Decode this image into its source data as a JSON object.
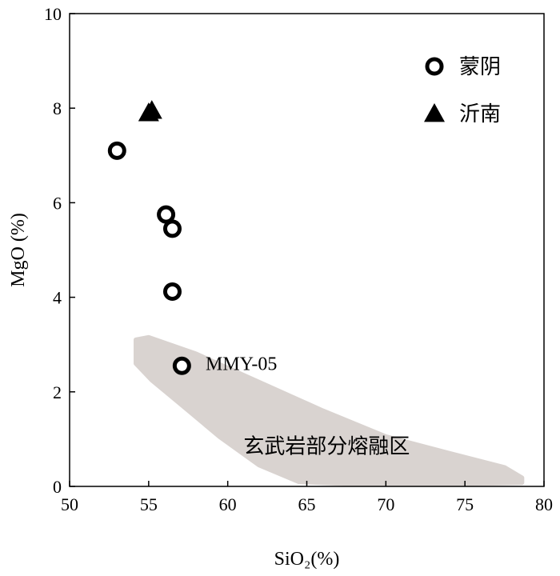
{
  "chart_data": {
    "type": "scatter",
    "xlabel": "SiO₂(%)",
    "ylabel": "MgO (%)",
    "xlim": [
      50,
      80
    ],
    "ylim": [
      0,
      10
    ],
    "x_ticks": [
      50,
      55,
      60,
      65,
      70,
      75,
      80
    ],
    "y_ticks": [
      0,
      2,
      4,
      6,
      8,
      10
    ],
    "grid": false,
    "legend_position": "top-right",
    "series": [
      {
        "name": "蒙阴",
        "marker": "open-circle",
        "color": "#000000",
        "points": [
          {
            "x": 53.0,
            "y": 7.1
          },
          {
            "x": 56.1,
            "y": 5.75
          },
          {
            "x": 56.5,
            "y": 5.45
          },
          {
            "x": 56.5,
            "y": 4.12
          },
          {
            "x": 57.1,
            "y": 2.55
          }
        ]
      },
      {
        "name": "沂南",
        "marker": "filled-triangle",
        "color": "#000000",
        "points": [
          {
            "x": 55.0,
            "y": 7.9
          },
          {
            "x": 55.2,
            "y": 7.95
          }
        ]
      }
    ],
    "region": {
      "label": "玄武岩部分熔融区",
      "color": "#d9d3d0",
      "polygon": [
        {
          "x": 54.2,
          "y": 3.1
        },
        {
          "x": 55.0,
          "y": 3.15
        },
        {
          "x": 58.0,
          "y": 2.8
        },
        {
          "x": 62.0,
          "y": 2.2
        },
        {
          "x": 66.0,
          "y": 1.6
        },
        {
          "x": 70.0,
          "y": 1.05
        },
        {
          "x": 74.0,
          "y": 0.7
        },
        {
          "x": 77.5,
          "y": 0.4
        },
        {
          "x": 78.6,
          "y": 0.18
        },
        {
          "x": 78.6,
          "y": 0.08
        },
        {
          "x": 74.0,
          "y": 0.05
        },
        {
          "x": 68.0,
          "y": 0.05
        },
        {
          "x": 64.5,
          "y": 0.1
        },
        {
          "x": 62.0,
          "y": 0.45
        },
        {
          "x": 59.5,
          "y": 1.05
        },
        {
          "x": 57.0,
          "y": 1.75
        },
        {
          "x": 55.2,
          "y": 2.25
        },
        {
          "x": 54.2,
          "y": 2.6
        }
      ]
    },
    "annotations": [
      {
        "text": "MMY-05",
        "x": 58.6,
        "y": 2.6
      }
    ]
  }
}
